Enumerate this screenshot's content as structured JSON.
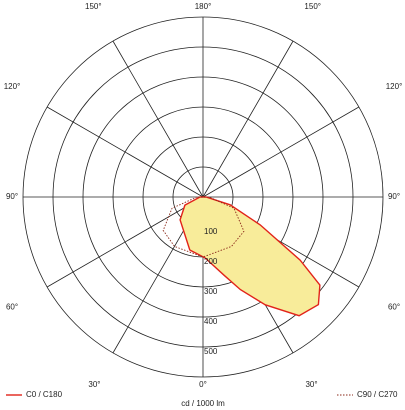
{
  "chart_data": {
    "type": "polar",
    "unit_label": "cd / 1000 lm",
    "rlim": [
      0,
      600
    ],
    "rticks": [
      100,
      200,
      300,
      400,
      500
    ],
    "angle_ticks_center": [
      {
        "value": 180,
        "label": "180°"
      },
      {
        "value": 0,
        "label": "0°"
      }
    ],
    "angle_ticks_left": [
      {
        "value": 150,
        "label": "150°"
      },
      {
        "value": 120,
        "label": "120°"
      },
      {
        "value": 90,
        "label": "90°"
      },
      {
        "value": 60,
        "label": "60°"
      },
      {
        "value": 30,
        "label": "30°"
      }
    ],
    "angle_ticks_right": [
      {
        "value": 150,
        "label": "150°"
      },
      {
        "value": 120,
        "label": "120°"
      },
      {
        "value": 90,
        "label": "90°"
      },
      {
        "value": 60,
        "label": "60°"
      },
      {
        "value": 30,
        "label": "30°"
      }
    ],
    "series": [
      {
        "name": "C0 / C180",
        "color": "#e2231a",
        "fill": "#f8ec9a",
        "dash": false,
        "angles": [
          -90,
          -66,
          -45,
          -14,
          2,
          15,
          22,
          30,
          39,
          47,
          53,
          57,
          64,
          74,
          90
        ],
        "values": [
          10,
          66,
          108,
          182,
          203,
          270,
          333,
          415,
          509,
          526,
          488,
          386,
          212,
          94,
          10
        ]
      },
      {
        "name": "C90 / C270",
        "color": "#8b2a1a",
        "fill": "none",
        "dash": true,
        "angles": [
          -90,
          -70,
          -50,
          -30,
          0,
          30,
          50,
          70,
          90
        ],
        "values": [
          20,
          110,
          173,
          190,
          200,
          190,
          178,
          110,
          20
        ]
      }
    ]
  }
}
